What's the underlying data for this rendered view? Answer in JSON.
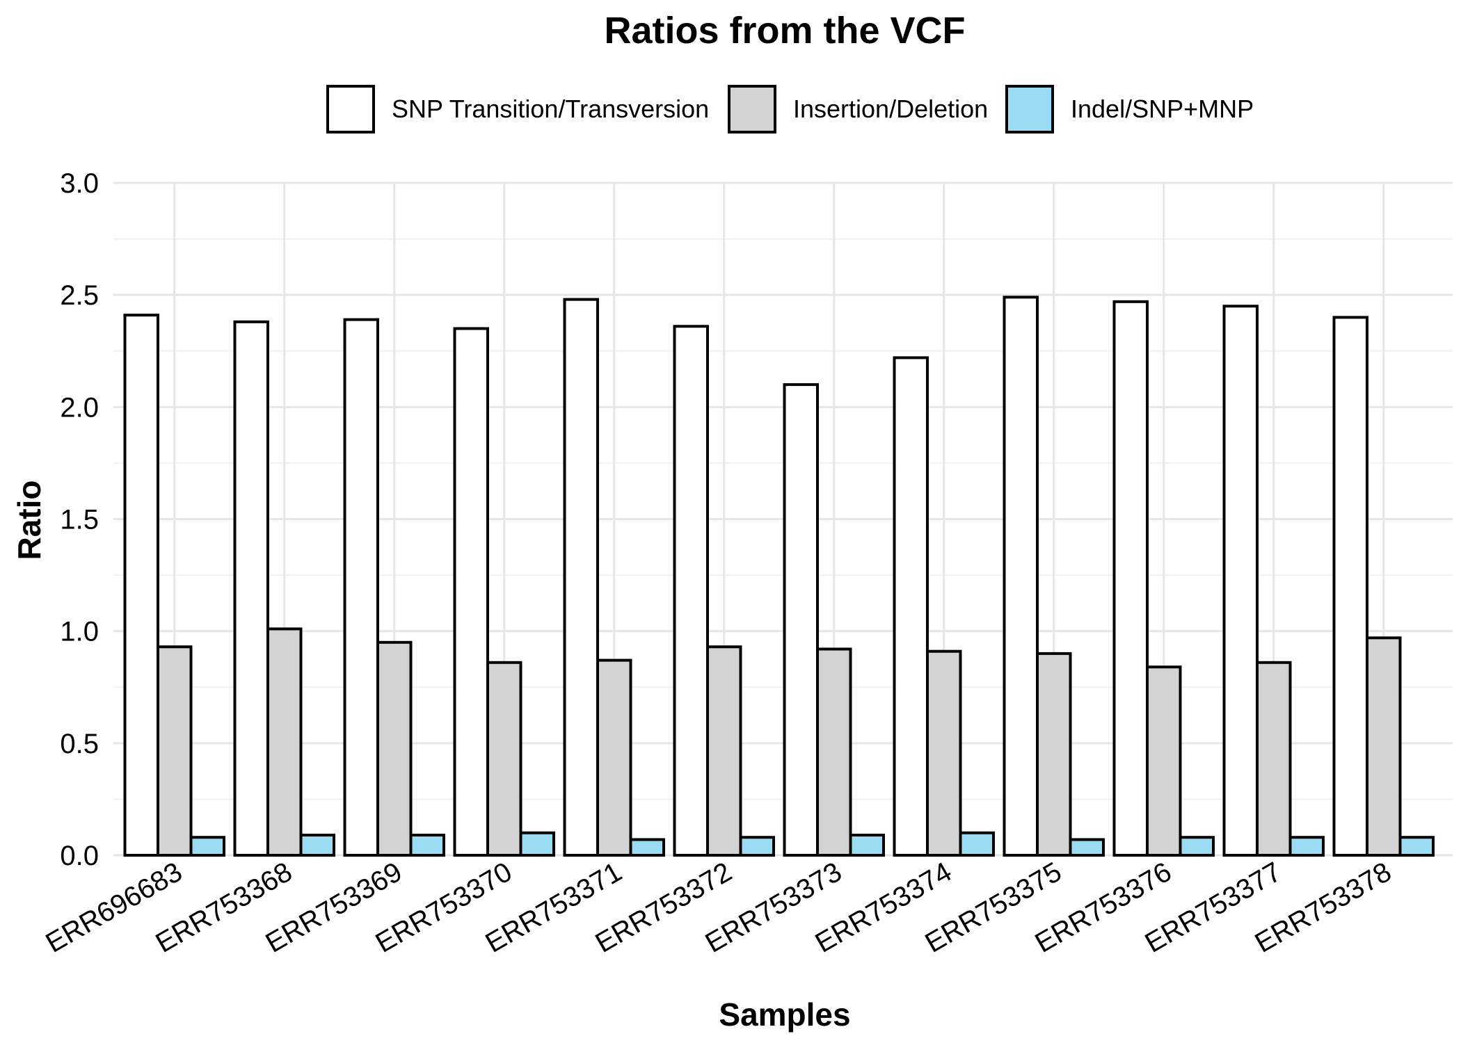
{
  "chart_data": {
    "type": "bar",
    "title": "Ratios from the VCF",
    "xlabel": "Samples",
    "ylabel": "Ratio",
    "ylim": [
      0,
      3.0
    ],
    "yticks": [
      "0.0",
      "0.5",
      "1.0",
      "1.5",
      "2.0",
      "2.5",
      "3.0"
    ],
    "grid": true,
    "legend_position": "top",
    "categories": [
      "ERR696683",
      "ERR753368",
      "ERR753369",
      "ERR753370",
      "ERR753371",
      "ERR753372",
      "ERR753373",
      "ERR753374",
      "ERR753375",
      "ERR753376",
      "ERR753377",
      "ERR753378"
    ],
    "series": [
      {
        "name": "SNP Transition/Transversion",
        "color": "#ffffff",
        "values": [
          2.41,
          2.38,
          2.39,
          2.35,
          2.48,
          2.36,
          2.1,
          2.22,
          2.49,
          2.47,
          2.45,
          2.4
        ]
      },
      {
        "name": "Insertion/Deletion",
        "color": "#d3d3d3",
        "values": [
          0.93,
          1.01,
          0.95,
          0.86,
          0.87,
          0.93,
          0.92,
          0.91,
          0.9,
          0.84,
          0.86,
          0.97
        ]
      },
      {
        "name": "Indel/SNP+MNP",
        "color": "#9bdcf5",
        "values": [
          0.08,
          0.09,
          0.09,
          0.1,
          0.07,
          0.08,
          0.09,
          0.1,
          0.07,
          0.08,
          0.08,
          0.08
        ]
      }
    ]
  }
}
